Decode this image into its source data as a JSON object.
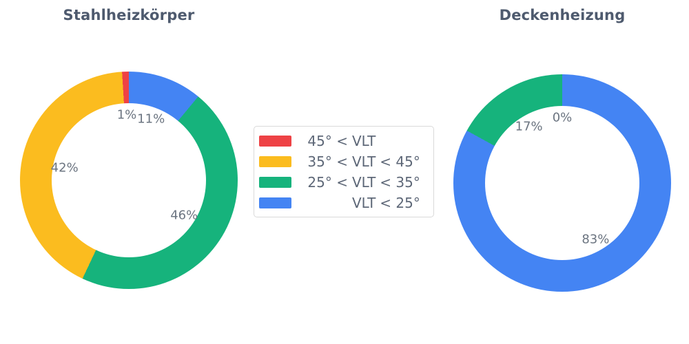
{
  "page": {
    "background": "#ffffff"
  },
  "chart_data": [
    {
      "type": "pie",
      "title": "Stahlheizkörper",
      "hole": 0.71,
      "direction": "clockwise-from-top, legend order reversed",
      "categories": [
        "45° < VLT",
        "35° < VLT < 45°",
        "25° < VLT < 35°",
        "VLT < 25°"
      ],
      "colors": [
        "#EE4245",
        "#FBBC1F",
        "#16B37C",
        "#4484F3"
      ],
      "values": [
        1,
        42,
        46,
        11
      ],
      "labels": [
        "1%",
        "42%",
        "46%",
        "11%"
      ],
      "label_position": "inside-near-ring"
    },
    {
      "type": "pie",
      "title": "Deckenheizung",
      "hole": 0.71,
      "direction": "clockwise-from-top, legend order reversed",
      "categories": [
        "45° < VLT",
        "35° < VLT < 45°",
        "25° < VLT < 35°",
        "VLT < 25°"
      ],
      "colors": [
        "#EE4245",
        "#FBBC1F",
        "#16B37C",
        "#4484F3"
      ],
      "values": [
        0,
        0,
        17,
        83
      ],
      "labels": [
        "0%",
        "0%",
        "17%",
        "83%"
      ],
      "label_position": "inside-near-ring"
    }
  ],
  "legend": {
    "position": "center-between-charts",
    "border_color": "#d9d9d9",
    "items": [
      {
        "label": "45° < VLT",
        "left": "45° <",
        "mid": "VLT",
        "right": "",
        "color": "#EE4245"
      },
      {
        "label": "35° < VLT < 45°",
        "left": "35° <",
        "mid": "VLT",
        "right": "< 45°",
        "color": "#FBBC1F"
      },
      {
        "label": "25° < VLT < 35°",
        "left": "25° <",
        "mid": "VLT",
        "right": "< 35°",
        "color": "#16B37C"
      },
      {
        "label": "VLT < 25°",
        "left": "",
        "mid": "VLT",
        "right": "< 25°",
        "color": "#4484F3"
      }
    ]
  },
  "colors": {
    "title_text": "#4e5a6e",
    "slice_label_text": "#6b7480",
    "legend_text": "#5d6777"
  }
}
